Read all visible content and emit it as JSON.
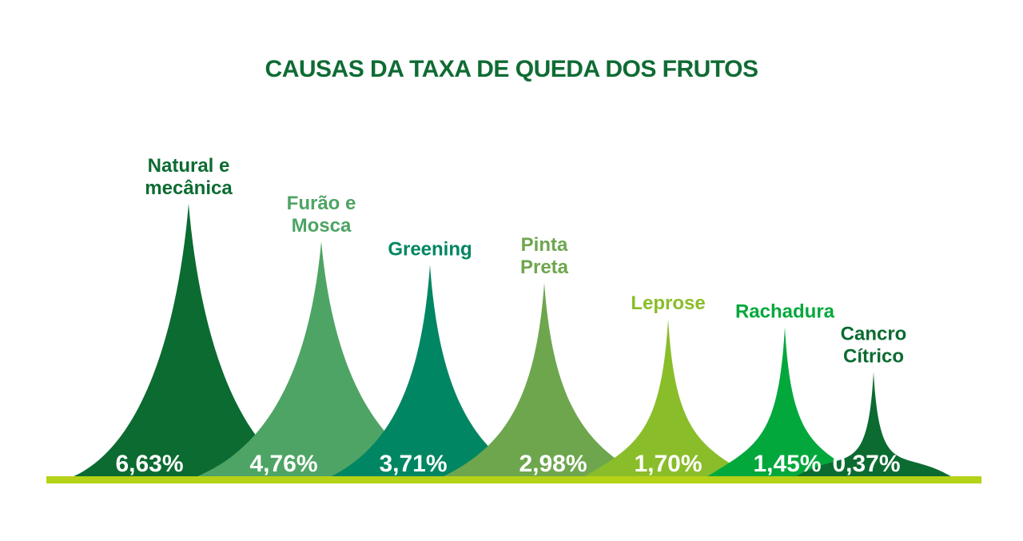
{
  "chart_data": {
    "type": "area",
    "title": "CAUSAS DA TAXA DE QUEDA DOS FRUTOS",
    "categories": [
      "Natural e mecânica",
      "Furão e Mosca",
      "Greening",
      "Pinta Preta",
      "Leprose",
      "Rachadura",
      "Cancro Cítrico"
    ],
    "category_lines": [
      [
        "Natural e",
        "mecânica"
      ],
      [
        "Furão e",
        "Mosca"
      ],
      [
        "Greening"
      ],
      [
        "Pinta",
        "Preta"
      ],
      [
        "Leprose"
      ],
      [
        "Rachadura"
      ],
      [
        "Cancro",
        "Cítrico"
      ]
    ],
    "values": [
      6.63,
      4.76,
      3.71,
      2.98,
      1.7,
      1.45,
      0.37
    ],
    "value_labels": [
      "6,63%",
      "4,76%",
      "3,71%",
      "2,98%",
      "1,70%",
      "1,45%",
      "0,37%"
    ],
    "unit": "%",
    "colors": [
      "#0b6b31",
      "#4ea464",
      "#008662",
      "#6ea64e",
      "#8abd2a",
      "#03a83c",
      "#0b6b31"
    ],
    "label_colors": [
      "#0b6b31",
      "#4ea464",
      "#008662",
      "#6ea64e",
      "#8abd2a",
      "#03a83c",
      "#0b6b31"
    ],
    "baseline_color": "#b6d216",
    "grid": false,
    "legend": "none"
  }
}
